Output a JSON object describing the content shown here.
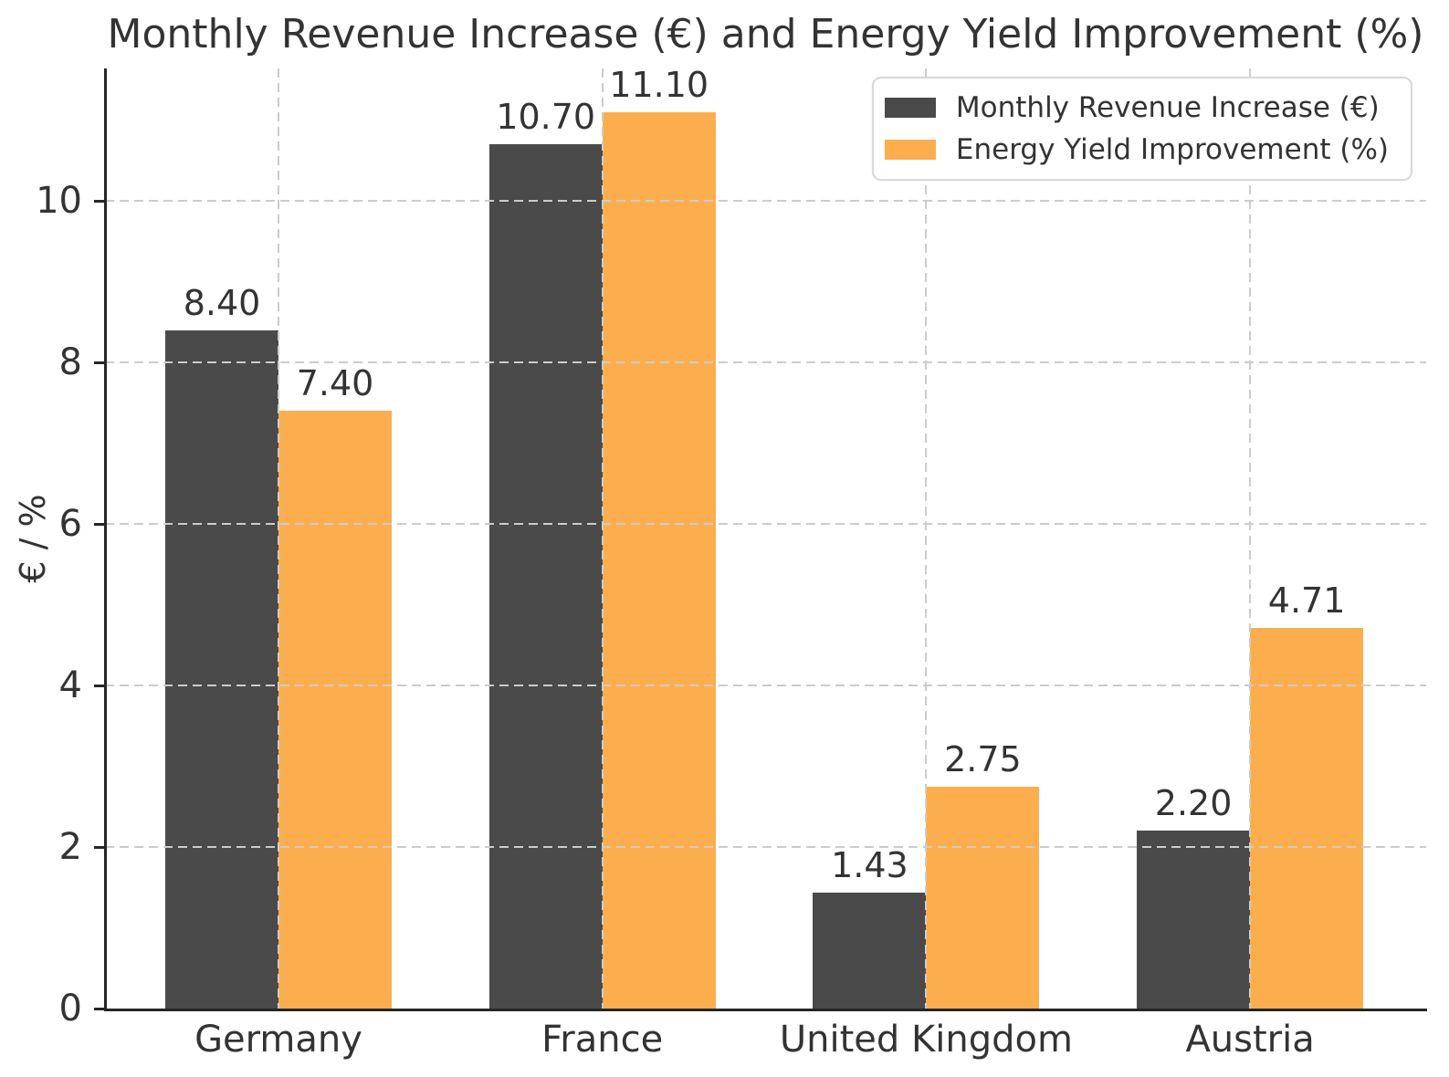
{
  "chart_data": {
    "type": "bar",
    "title": "Monthly Revenue Increase (€) and Energy Yield Improvement (%)",
    "xlabel": "",
    "ylabel": "€ / %",
    "categories": [
      "Germany",
      "France",
      "United Kingdom",
      "Austria"
    ],
    "series": [
      {
        "name": "Monthly Revenue Increase (€)",
        "color": "#4a4a4a",
        "values": [
          8.4,
          10.7,
          1.43,
          2.2
        ]
      },
      {
        "name": "Energy Yield Improvement (%)",
        "color": "#fcae4e",
        "values": [
          7.4,
          11.1,
          2.75,
          4.71
        ]
      }
    ],
    "value_labels": [
      "8.40",
      "7.40",
      "10.70",
      "11.10",
      "1.43",
      "2.75",
      "2.20",
      "4.71"
    ],
    "ylim": [
      0,
      11.64
    ],
    "yticks": [
      0,
      2,
      4,
      6,
      8,
      10
    ],
    "grid": true,
    "grid_style": "dashed",
    "grid_color": "#cccccc",
    "legend_position": "upper right",
    "text_color": "#333333",
    "spine_color": "#262626",
    "background_color": "#ffffff"
  }
}
